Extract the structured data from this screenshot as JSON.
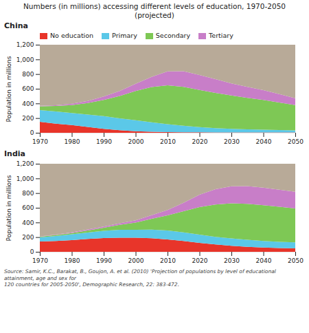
{
  "title": "Numbers (in millions) accessing different levels of education, 1970-2050 (projected)",
  "source": "Source: Samir, K.C., Barakat, B., Goujon, A. et al. (2010) 'Projection of populations by level of educational attainment, age and sex for\n120 countries for 2005-2050', Demographic Research, 22: 383-472.",
  "chart_data": [
    {
      "type": "area",
      "stacked": true,
      "title": "China",
      "x": [
        1970,
        1975,
        1980,
        1985,
        1990,
        1995,
        2000,
        2005,
        2010,
        2015,
        2020,
        2025,
        2030,
        2035,
        2040,
        2045,
        2050
      ],
      "xlim": [
        1970,
        2050
      ],
      "xticks": [
        1970,
        1980,
        1990,
        2000,
        2010,
        2020,
        2030,
        2040,
        2050
      ],
      "ylim": [
        0,
        1200
      ],
      "yticks": [
        0,
        200,
        400,
        600,
        800,
        {
          "value": 1000,
          "label": "1,000"
        },
        {
          "value": 1200,
          "label": "1,200"
        }
      ],
      "ylabel": "Population in millions",
      "grid": true,
      "legend": "upper left",
      "series": [
        {
          "name": "No education",
          "color": "#e8352a",
          "values": [
            150,
            125,
            105,
            80,
            55,
            35,
            22,
            15,
            10,
            8,
            6,
            5,
            5,
            4,
            4,
            4,
            4
          ]
        },
        {
          "name": "Primary",
          "color": "#5bc8e8",
          "values": [
            160,
            165,
            165,
            168,
            172,
            162,
            148,
            128,
            108,
            88,
            72,
            58,
            48,
            42,
            38,
            33,
            28
          ]
        },
        {
          "name": "Secondary",
          "color": "#7ec855",
          "values": [
            52,
            75,
            108,
            158,
            220,
            305,
            400,
            480,
            530,
            530,
            505,
            480,
            455,
            430,
            405,
            375,
            345
          ]
        },
        {
          "name": "Tertiary",
          "color": "#c87ec8",
          "values": [
            5,
            10,
            18,
            28,
            48,
            68,
            98,
            138,
            188,
            212,
            205,
            188,
            165,
            150,
            135,
            115,
            95
          ]
        },
        {
          "color": "#b8aa98",
          "values": [
            833,
            825,
            804,
            766,
            705,
            630,
            532,
            439,
            364,
            362,
            412,
            469,
            527,
            574,
            618,
            673,
            728
          ]
        }
      ]
    },
    {
      "type": "area",
      "stacked": true,
      "title": "India",
      "x": [
        1970,
        1975,
        1980,
        1985,
        1990,
        1995,
        2000,
        2005,
        2010,
        2015,
        2020,
        2025,
        2030,
        2035,
        2040,
        2045,
        2050
      ],
      "xlim": [
        1970,
        2050
      ],
      "xticks": [
        1970,
        1980,
        1990,
        2000,
        2010,
        2020,
        2030,
        2040,
        2050
      ],
      "ylim": [
        0,
        1200
      ],
      "yticks": [
        0,
        200,
        400,
        600,
        800,
        {
          "value": 1000,
          "label": "1,000"
        },
        {
          "value": 1200,
          "label": "1,200"
        }
      ],
      "ylabel": "Population in millions",
      "grid": true,
      "series": [
        {
          "name": "No education",
          "color": "#e8352a",
          "values": [
            140,
            148,
            160,
            175,
            188,
            192,
            192,
            185,
            168,
            148,
            122,
            100,
            82,
            68,
            58,
            52,
            48
          ]
        },
        {
          "name": "Primary",
          "color": "#5bc8e8",
          "values": [
            58,
            68,
            78,
            88,
            98,
            108,
            108,
            118,
            122,
            118,
            112,
            105,
            100,
            95,
            90,
            85,
            80
          ]
        },
        {
          "name": "Secondary",
          "color": "#7ec855",
          "values": [
            8,
            13,
            18,
            28,
            42,
            68,
            98,
            148,
            208,
            288,
            375,
            440,
            480,
            490,
            488,
            478,
            462
          ]
        },
        {
          "name": "Tertiary",
          "color": "#c87ec8",
          "values": [
            4,
            6,
            9,
            13,
            16,
            22,
            32,
            48,
            72,
            115,
            168,
            208,
            232,
            242,
            238,
            232,
            228
          ]
        },
        {
          "color": "#b8aa98",
          "values": [
            990,
            965,
            935,
            896,
            856,
            810,
            770,
            701,
            630,
            531,
            423,
            347,
            306,
            305,
            326,
            353,
            382
          ]
        }
      ]
    }
  ]
}
